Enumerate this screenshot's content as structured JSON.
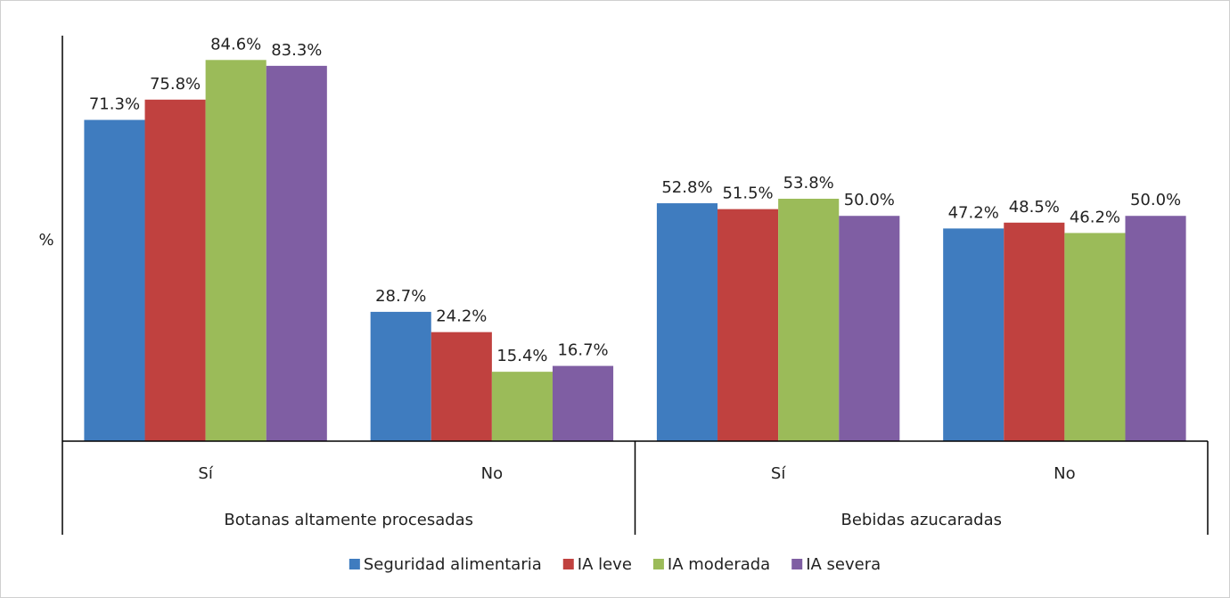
{
  "chart_data": {
    "type": "bar",
    "y_label": "%",
    "categories": [
      "Sí",
      "No",
      "Sí",
      "No"
    ],
    "groups": [
      "Botanas altamente procesadas",
      "Bebidas azucaradas"
    ],
    "ylim": [
      0,
      90
    ],
    "series": [
      {
        "name": "Seguridad alimentaria",
        "color": "#3f7cbf",
        "values": [
          71.3,
          28.7,
          52.8,
          47.2
        ],
        "value_labels": [
          "71.3%",
          "28.7%",
          "52.8%",
          "47.2%"
        ]
      },
      {
        "name": "IA leve",
        "color": "#c0413f",
        "values": [
          75.8,
          24.2,
          51.5,
          48.5
        ],
        "value_labels": [
          "75.8%",
          "24.2%",
          "51.5%",
          "48.5%"
        ]
      },
      {
        "name": "IA moderada",
        "color": "#9bbb59",
        "values": [
          84.6,
          15.4,
          53.8,
          46.2
        ],
        "value_labels": [
          "84.6%",
          "15.4%",
          "53.8%",
          "46.2%"
        ]
      },
      {
        "name": "IA severa",
        "color": "#7f5ea3",
        "values": [
          83.3,
          16.7,
          50.0,
          50.0
        ],
        "value_labels": [
          "83.3%",
          "16.7%",
          "50.0%",
          "50.0%"
        ]
      }
    ],
    "legend": "bottom"
  }
}
